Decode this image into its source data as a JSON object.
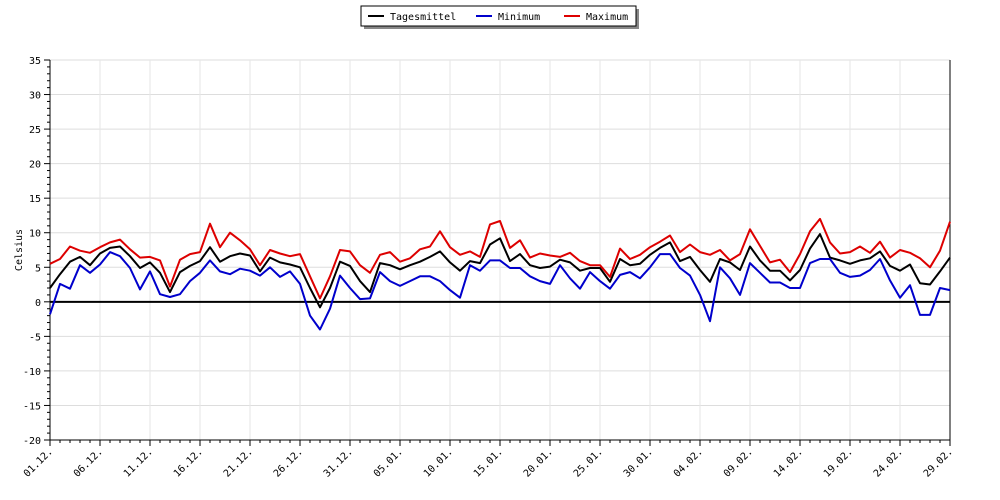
{
  "chart_data": {
    "type": "line",
    "ylabel": "Celsius",
    "ylim": [
      -20,
      35
    ],
    "yticks": [
      35,
      30,
      25,
      20,
      15,
      10,
      5,
      0,
      -5,
      -10,
      -15,
      -20
    ],
    "grid": true,
    "legend_position": "top-center",
    "x_tick_labels": [
      "01.12.",
      "06.12.",
      "11.12.",
      "16.12.",
      "21.12.",
      "26.12.",
      "31.12.",
      "05.01.",
      "10.01.",
      "15.01.",
      "20.01.",
      "25.01.",
      "30.01.",
      "04.02.",
      "09.02.",
      "14.02.",
      "19.02.",
      "24.02.",
      "29.02."
    ],
    "series": [
      {
        "name": "Tagesmittel",
        "color": "#000000",
        "values": [
          2.0,
          4.0,
          5.8,
          6.5,
          5.3,
          7.0,
          7.8,
          8.0,
          6.6,
          4.9,
          5.7,
          4.2,
          1.4,
          4.3,
          5.2,
          5.9,
          7.9,
          5.8,
          6.6,
          7.0,
          6.7,
          4.4,
          6.4,
          5.7,
          5.4,
          5.0,
          2.0,
          -0.8,
          2.0,
          5.8,
          5.2,
          3.0,
          1.4,
          5.6,
          5.3,
          4.7,
          5.3,
          5.8,
          6.5,
          7.3,
          5.7,
          4.5,
          5.9,
          5.6,
          8.3,
          9.2,
          5.9,
          6.9,
          5.3,
          4.9,
          5.1,
          6.1,
          5.7,
          4.5,
          4.9,
          4.9,
          2.9,
          6.2,
          5.3,
          5.5,
          6.8,
          7.8,
          8.6,
          5.9,
          6.5,
          4.6,
          2.9,
          6.2,
          5.7,
          4.6,
          8.0,
          6.0,
          4.5,
          4.5,
          3.1,
          4.6,
          7.7,
          9.8,
          6.4,
          6.0,
          5.5,
          6.0,
          6.3,
          7.3,
          5.2,
          4.5,
          5.4,
          2.7,
          2.5,
          4.4,
          6.4
        ]
      },
      {
        "name": "Minimum",
        "color": "#0000cc",
        "values": [
          -1.8,
          2.6,
          1.9,
          5.3,
          4.2,
          5.4,
          7.2,
          6.6,
          4.9,
          1.8,
          4.4,
          1.1,
          0.7,
          1.1,
          3.0,
          4.2,
          6.0,
          4.4,
          4.0,
          4.8,
          4.5,
          3.8,
          5.0,
          3.6,
          4.4,
          2.6,
          -2.0,
          -4.0,
          -1.0,
          3.8,
          2.0,
          0.4,
          0.5,
          4.3,
          3.0,
          2.3,
          3.0,
          3.7,
          3.7,
          3.0,
          1.7,
          0.6,
          5.3,
          4.5,
          6.0,
          6.0,
          4.9,
          4.9,
          3.7,
          3.0,
          2.6,
          5.3,
          3.4,
          1.9,
          4.3,
          3.0,
          1.9,
          3.9,
          4.3,
          3.4,
          5.0,
          6.9,
          6.9,
          4.9,
          3.8,
          1.0,
          -2.8,
          5.0,
          3.4,
          1.0,
          5.6,
          4.2,
          2.8,
          2.8,
          2.0,
          2.0,
          5.6,
          6.2,
          6.2,
          4.2,
          3.6,
          3.8,
          4.6,
          6.2,
          3.1,
          0.6,
          2.4,
          -1.9,
          -1.9,
          2.0,
          1.7
        ]
      },
      {
        "name": "Maximum",
        "color": "#dd0000",
        "values": [
          5.5,
          6.2,
          8.0,
          7.4,
          7.1,
          7.9,
          8.6,
          9.0,
          7.6,
          6.4,
          6.5,
          6.0,
          2.2,
          6.1,
          6.9,
          7.2,
          11.3,
          7.9,
          10.0,
          8.9,
          7.6,
          5.3,
          7.5,
          7.0,
          6.6,
          6.9,
          3.7,
          0.5,
          3.7,
          7.5,
          7.3,
          5.3,
          4.2,
          6.8,
          7.2,
          5.8,
          6.3,
          7.6,
          8.0,
          10.2,
          7.9,
          6.8,
          7.3,
          6.5,
          11.2,
          11.7,
          7.8,
          8.9,
          6.4,
          7.0,
          6.7,
          6.5,
          7.1,
          5.9,
          5.3,
          5.3,
          3.6,
          7.7,
          6.2,
          6.8,
          7.9,
          8.7,
          9.6,
          7.2,
          8.3,
          7.2,
          6.8,
          7.5,
          6.0,
          6.9,
          10.5,
          8.1,
          5.7,
          6.1,
          4.3,
          6.9,
          10.2,
          12.0,
          8.6,
          7.0,
          7.2,
          8.0,
          7.1,
          8.7,
          6.4,
          7.5,
          7.1,
          6.3,
          5.0,
          7.4,
          11.6
        ]
      }
    ]
  }
}
